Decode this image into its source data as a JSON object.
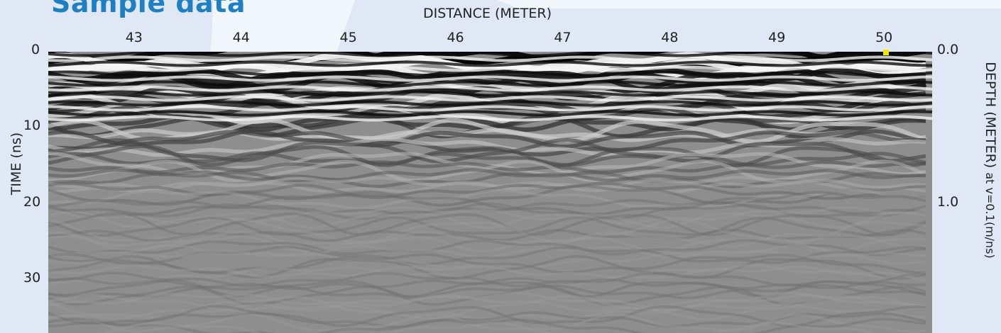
{
  "title": "Sample data",
  "chart_data": {
    "type": "heatmap",
    "subtype": "ground-penetrating-radar-radargram",
    "colormap": "grayscale",
    "xlabel": "DISTANCE (METER)",
    "ylabel": "TIME (ns)",
    "y2label_main": "DEPTH (METER)",
    "y2label_note": "at v=0.1(m/ns)",
    "xlim": [
      42.2,
      50.45
    ],
    "ylim": [
      0,
      37
    ],
    "x_ticks": [
      43,
      44,
      45,
      46,
      47,
      48,
      49,
      50
    ],
    "y_ticks": [
      0,
      10,
      20,
      30
    ],
    "y2_ticks": [
      "0.0",
      "1.0"
    ],
    "marker_color": "#f3e600"
  },
  "colors": {
    "background": "#dfe8f4",
    "title": "#1f7fc3",
    "decor": "#ffffff"
  }
}
